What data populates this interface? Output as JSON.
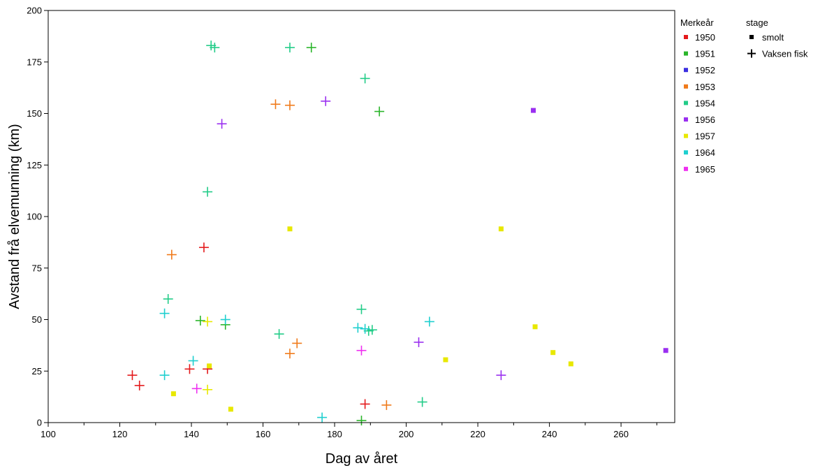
{
  "chart_data": {
    "type": "scatter",
    "xlabel": "Dag av året",
    "ylabel": "Avstand frå elvemunning (km)",
    "xlim": [
      100,
      275
    ],
    "ylim": [
      0,
      200
    ],
    "x_ticks": [
      100,
      120,
      140,
      160,
      180,
      200,
      220,
      240,
      260
    ],
    "y_ticks": [
      0,
      25,
      50,
      75,
      100,
      125,
      150,
      175,
      200
    ],
    "grid": false,
    "legend_placement": "right",
    "color_legend": {
      "title": "Merkeår",
      "entries": [
        {
          "label": "1950",
          "color": "#e41a1c"
        },
        {
          "label": "1951",
          "color": "#2ab52a"
        },
        {
          "label": "1952",
          "color": "#3b2fe0"
        },
        {
          "label": "1953",
          "color": "#f07a1a"
        },
        {
          "label": "1954",
          "color": "#22cc88"
        },
        {
          "label": "1956",
          "color": "#9a2ff0"
        },
        {
          "label": "1957",
          "color": "#e8e800"
        },
        {
          "label": "1964",
          "color": "#1ecfcf"
        },
        {
          "label": "1965",
          "color": "#ee2ff0"
        }
      ]
    },
    "shape_legend": {
      "title": "stage",
      "entries": [
        {
          "label": "smolt",
          "shape": "square"
        },
        {
          "label": "Vaksen fisk",
          "shape": "plus"
        }
      ]
    },
    "series": [
      {
        "name": "1950",
        "stage": "Vaksen fisk",
        "points": [
          [
            123.5,
            23
          ],
          [
            125.5,
            18
          ],
          [
            139.5,
            26
          ],
          [
            143.5,
            85
          ],
          [
            144.5,
            26
          ],
          [
            188.5,
            9
          ]
        ]
      },
      {
        "name": "1951",
        "stage": "Vaksen fisk",
        "points": [
          [
            142.5,
            49.5
          ],
          [
            149.5,
            47.5
          ],
          [
            173.5,
            182
          ],
          [
            187.5,
            1
          ],
          [
            192.5,
            151
          ]
        ]
      },
      {
        "name": "1953",
        "stage": "Vaksen fisk",
        "points": [
          [
            134.5,
            81.5
          ],
          [
            163.5,
            154.5
          ],
          [
            167.5,
            154
          ],
          [
            167.5,
            33.5
          ],
          [
            169.5,
            38.5
          ],
          [
            194.5,
            8.5
          ]
        ]
      },
      {
        "name": "1954",
        "stage": "Vaksen fisk",
        "points": [
          [
            133.5,
            60
          ],
          [
            144.5,
            112
          ],
          [
            145.5,
            183
          ],
          [
            146.5,
            182
          ],
          [
            164.5,
            43
          ],
          [
            167.5,
            182
          ],
          [
            187.5,
            55
          ],
          [
            188.5,
            167
          ],
          [
            189.5,
            44.5
          ],
          [
            190.5,
            45
          ],
          [
            204.5,
            10
          ]
        ]
      },
      {
        "name": "1956",
        "stage": "Vaksen fisk",
        "points": [
          [
            148.5,
            145
          ],
          [
            177.5,
            156
          ],
          [
            203.5,
            39
          ],
          [
            226.5,
            23
          ]
        ]
      },
      {
        "name": "1956",
        "stage": "smolt",
        "points": [
          [
            235.5,
            151.5
          ],
          [
            272.5,
            35
          ]
        ]
      },
      {
        "name": "1957",
        "stage": "Vaksen fisk",
        "points": [
          [
            144.5,
            49
          ],
          [
            144.5,
            16
          ]
        ]
      },
      {
        "name": "1957",
        "stage": "smolt",
        "points": [
          [
            135,
            14
          ],
          [
            145,
            27.5
          ],
          [
            151,
            6.5
          ],
          [
            167.5,
            94
          ],
          [
            211,
            30.5
          ],
          [
            226.5,
            94
          ],
          [
            236,
            46.5
          ],
          [
            241,
            34
          ],
          [
            246,
            28.5
          ]
        ]
      },
      {
        "name": "1964",
        "stage": "Vaksen fisk",
        "points": [
          [
            132.5,
            53
          ],
          [
            132.5,
            23
          ],
          [
            140.5,
            30
          ],
          [
            149.5,
            50
          ],
          [
            176.5,
            2.5
          ],
          [
            186.5,
            46
          ],
          [
            188.5,
            45.5
          ],
          [
            206.5,
            49
          ]
        ]
      },
      {
        "name": "1965",
        "stage": "Vaksen fisk",
        "points": [
          [
            141.5,
            16.5
          ],
          [
            187.5,
            35
          ]
        ]
      }
    ]
  }
}
